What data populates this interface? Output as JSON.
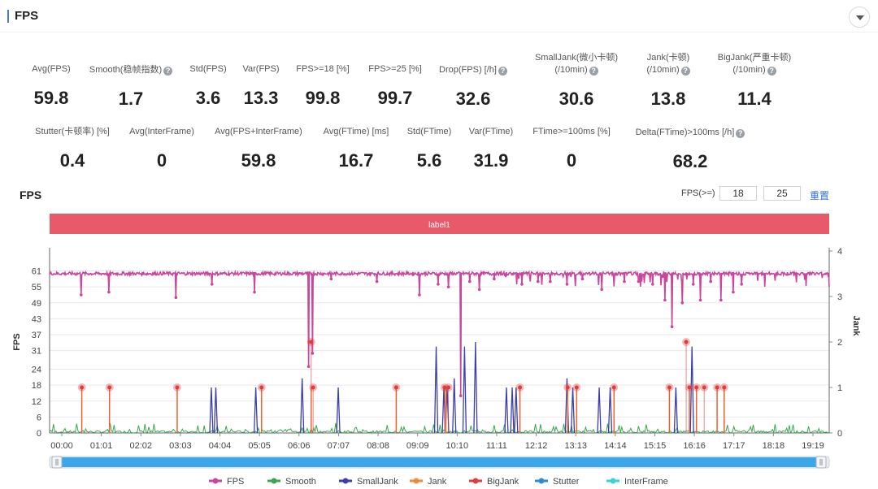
{
  "header": {
    "title": "FPS"
  },
  "metrics_row1": [
    {
      "label": "Avg(FPS)",
      "value": "59.8",
      "help": false
    },
    {
      "label": "Smooth(稳帧指数)",
      "value": "1.7",
      "help": true
    },
    {
      "label": "Std(FPS)",
      "value": "3.6",
      "help": false
    },
    {
      "label": "Var(FPS)",
      "value": "13.3",
      "help": false
    },
    {
      "label": "FPS>=18 [%]",
      "value": "99.8",
      "help": false
    },
    {
      "label": "FPS>=25 [%]",
      "value": "99.7",
      "help": false
    },
    {
      "label": "Drop(FPS) [/h]",
      "value": "32.6",
      "help": true
    },
    {
      "label": "SmallJank(微小卡顿)",
      "label2": "(/10min)",
      "value": "30.6",
      "help": true
    },
    {
      "label": "Jank(卡顿)",
      "label2": "(/10min)",
      "value": "13.8",
      "help": true
    },
    {
      "label": "BigJank(严重卡顿)",
      "label2": "(/10min)",
      "value": "11.4",
      "help": true
    }
  ],
  "metrics_row2": [
    {
      "label": "Stutter(卡顿率) [%]",
      "value": "0.4",
      "help": false
    },
    {
      "label": "Avg(InterFrame)",
      "value": "0",
      "help": false
    },
    {
      "label": "Avg(FPS+InterFrame)",
      "value": "59.8",
      "help": false
    },
    {
      "label": "Avg(FTime) [ms]",
      "value": "16.7",
      "help": false
    },
    {
      "label": "Std(FTime)",
      "value": "5.6",
      "help": false
    },
    {
      "label": "Var(FTime)",
      "value": "31.9",
      "help": false
    },
    {
      "label": "FTime>=100ms [%]",
      "value": "0",
      "help": false
    },
    {
      "label": "Delta(FTime)>100ms [/h]",
      "value": "68.2",
      "help": true
    }
  ],
  "chart_controls": {
    "title": "FPS",
    "threshold_label": "FPS(>=)",
    "threshold_1": "18",
    "threshold_2": "25",
    "reset_label": "重置"
  },
  "chart_data": {
    "type": "line",
    "label_band": "label1",
    "ylabel": "FPS",
    "y2label": "Jank",
    "y_ticks": [
      0,
      6,
      12,
      18,
      24,
      31,
      37,
      43,
      49,
      55,
      61
    ],
    "y2_ticks": [
      0,
      1,
      2,
      3,
      4
    ],
    "ylim": [
      0,
      68.5
    ],
    "y2lim": [
      0,
      4
    ],
    "x_ticks": [
      "00:00",
      "01:01",
      "02:02",
      "03:03",
      "04:04",
      "05:05",
      "06:06",
      "07:07",
      "08:08",
      "09:09",
      "10:10",
      "11:11",
      "12:12",
      "13:13",
      "14:14",
      "15:15",
      "16:16",
      "17:17",
      "18:18",
      "19:19"
    ],
    "xlim_seconds": [
      0,
      1210
    ],
    "legend": [
      "FPS",
      "Smooth",
      "SmallJank",
      "Jank",
      "BigJank",
      "Stutter",
      "InterFrame"
    ],
    "colors": {
      "FPS": "#c8479c",
      "Smooth": "#3aa64f",
      "SmallJank": "#3c3fa8",
      "Jank": "#f08a3c",
      "BigJank": "#e23b3b",
      "Stutter": "#2f8ccf",
      "InterFrame": "#3bd0d8",
      "band": "#e85a6a",
      "slider": "#3aa8e8"
    },
    "fps_baseline": 60,
    "fps_drops": [
      [
        49,
        52
      ],
      [
        92,
        53
      ],
      [
        196,
        51
      ],
      [
        252,
        56
      ],
      [
        318,
        53
      ],
      [
        402,
        25
      ],
      [
        408,
        30
      ],
      [
        437,
        58
      ],
      [
        508,
        57
      ],
      [
        574,
        52
      ],
      [
        603,
        56
      ],
      [
        619,
        55
      ],
      [
        638,
        14
      ],
      [
        652,
        57
      ],
      [
        667,
        54
      ],
      [
        690,
        58
      ],
      [
        733,
        56
      ],
      [
        758,
        57
      ],
      [
        777,
        57
      ],
      [
        803,
        56
      ],
      [
        827,
        58
      ],
      [
        857,
        54
      ],
      [
        892,
        57
      ],
      [
        914,
        57
      ],
      [
        936,
        56
      ],
      [
        955,
        50
      ],
      [
        966,
        40
      ],
      [
        982,
        49
      ],
      [
        999,
        56
      ],
      [
        1010,
        50
      ],
      [
        1026,
        57
      ],
      [
        1042,
        50
      ],
      [
        1061,
        53
      ],
      [
        1074,
        56
      ]
    ],
    "smalljank": [
      [
        251,
        1
      ],
      [
        258,
        1
      ],
      [
        320,
        1
      ],
      [
        392,
        1.2
      ],
      [
        448,
        1
      ],
      [
        600,
        1.9
      ],
      [
        612,
        1
      ],
      [
        617,
        1
      ],
      [
        628,
        1.2
      ],
      [
        644,
        1.9
      ],
      [
        661,
        2
      ],
      [
        709,
        1
      ],
      [
        718,
        1
      ],
      [
        724,
        1
      ],
      [
        803,
        1.2
      ],
      [
        812,
        1
      ],
      [
        853,
        1
      ],
      [
        870,
        1
      ],
      [
        972,
        1
      ],
      [
        997,
        1.9
      ]
    ],
    "jank": [
      [
        50,
        1
      ],
      [
        93,
        1
      ],
      [
        198,
        1
      ],
      [
        329,
        1
      ],
      [
        406,
        1
      ],
      [
        538,
        1
      ],
      [
        615,
        1
      ],
      [
        730,
        1
      ],
      [
        804,
        1
      ],
      [
        818,
        1
      ],
      [
        876,
        1
      ],
      [
        962,
        1
      ],
      [
        993,
        1
      ],
      [
        1004,
        1
      ],
      [
        1036,
        1
      ],
      [
        1047,
        1
      ]
    ],
    "bigjank": [
      [
        50,
        1
      ],
      [
        93,
        1
      ],
      [
        198,
        1
      ],
      [
        329,
        1
      ],
      [
        406,
        2
      ],
      [
        409,
        1
      ],
      [
        538,
        1
      ],
      [
        613,
        1
      ],
      [
        619,
        1
      ],
      [
        730,
        1
      ],
      [
        804,
        1
      ],
      [
        818,
        1
      ],
      [
        876,
        1
      ],
      [
        962,
        1
      ],
      [
        988,
        2
      ],
      [
        993,
        1
      ],
      [
        1004,
        1
      ],
      [
        1016,
        1
      ],
      [
        1036,
        1
      ],
      [
        1047,
        1
      ]
    ]
  }
}
